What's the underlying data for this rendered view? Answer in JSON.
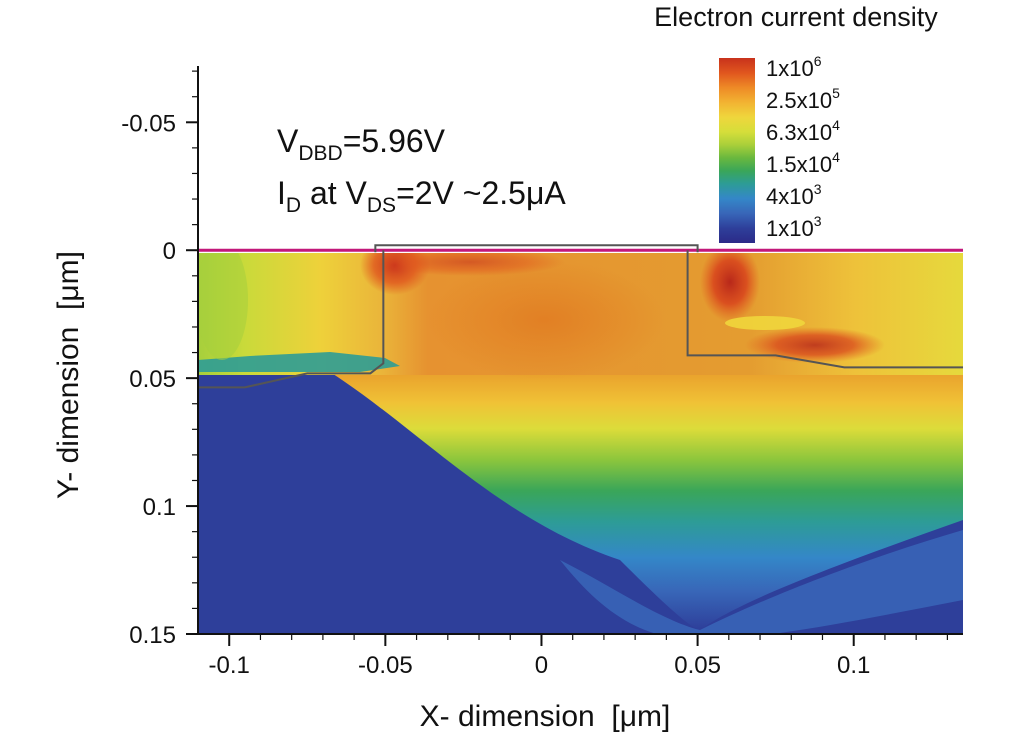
{
  "chart_data": {
    "type": "heatmap",
    "title": "Electron current density",
    "xlabel": "X- dimension  [μm]",
    "ylabel": "Y- dimension  [μm]",
    "xlim": [
      -0.11,
      0.135
    ],
    "ylim": [
      -0.072,
      0.15
    ],
    "y_axis_inverted": true,
    "x_ticks": [
      {
        "value": -0.1,
        "label": "-0.1"
      },
      {
        "value": -0.05,
        "label": "-0.05"
      },
      {
        "value": 0,
        "label": "0"
      },
      {
        "value": 0.05,
        "label": "0.05"
      },
      {
        "value": 0.1,
        "label": "0.1"
      }
    ],
    "y_ticks": [
      {
        "value": -0.05,
        "label": "-0.05"
      },
      {
        "value": 0,
        "label": "0"
      },
      {
        "value": 0.05,
        "label": "0.05"
      },
      {
        "value": 0.1,
        "label": "0.1"
      },
      {
        "value": 0.15,
        "label": "0.15"
      }
    ],
    "legend": {
      "placement": "top-right",
      "levels": [
        {
          "mantissa": "1x10",
          "exponent": "6",
          "value": 1000000
        },
        {
          "mantissa": "2.5x10",
          "exponent": "5",
          "value": 250000
        },
        {
          "mantissa": "6.3x10",
          "exponent": "4",
          "value": 63000
        },
        {
          "mantissa": "1.5x10",
          "exponent": "4",
          "value": 15000
        },
        {
          "mantissa": "4x10",
          "exponent": "3",
          "value": 4000
        },
        {
          "mantissa": "1x10",
          "exponent": "3",
          "value": 1000
        }
      ],
      "colors": [
        "#c8321c",
        "#e0561e",
        "#ee8a26",
        "#f2b332",
        "#efd63c",
        "#d5de3a",
        "#a9cf3a",
        "#69b83e",
        "#3aa659",
        "#2d9c96",
        "#3487c8",
        "#3866b8",
        "#2e3f9a",
        "#2b2a88"
      ]
    },
    "annotations": {
      "vdbd": {
        "v": "V",
        "sub": "DBD",
        "rest": "=5.96V"
      },
      "id": {
        "i": "I",
        "sub1": "D",
        "mid": " at V",
        "sub2": "DS",
        "rest": "=2V ~2.5μA"
      }
    },
    "surface_y": 0,
    "gate_span_x": [
      -0.05,
      0.05
    ],
    "junction_depth": 0.045,
    "junction_left_x": [
      -0.11,
      -0.05
    ],
    "junction_right_x": [
      0.05,
      0.135
    ]
  }
}
